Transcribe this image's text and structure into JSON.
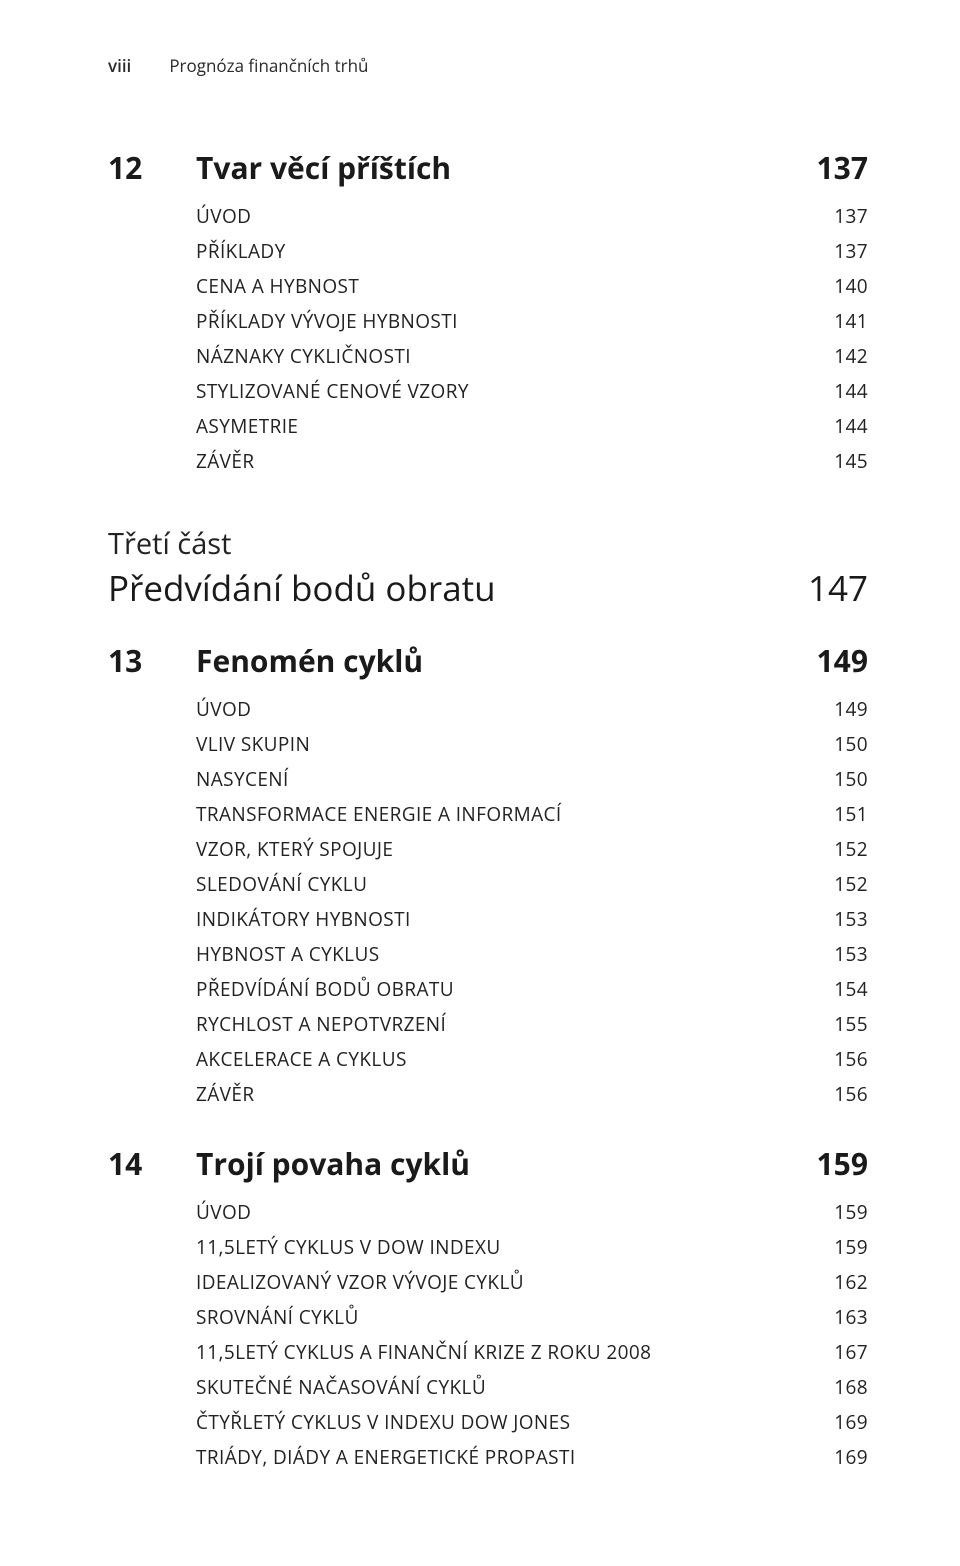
{
  "header": {
    "roman": "viii",
    "running_title": "Prognóza finančních trhů"
  },
  "chapter12": {
    "num": "12",
    "title": "Tvar věcí příštích",
    "page": "137",
    "entries": [
      {
        "label": "ÚVOD",
        "page": "137"
      },
      {
        "label": "PŘÍKLADY",
        "page": "137"
      },
      {
        "label": "CENA A HYBNOST",
        "page": "140"
      },
      {
        "label": "PŘÍKLADY VÝVOJE HYBNOSTI",
        "page": "141"
      },
      {
        "label": "NÁZNAKY CYKLIČNOSTI",
        "page": "142"
      },
      {
        "label": "STYLIZOVANÉ CENOVÉ VZORY",
        "page": "144"
      },
      {
        "label": "ASYMETRIE",
        "page": "144"
      },
      {
        "label": "ZÁVĚR",
        "page": "145"
      }
    ]
  },
  "part3": {
    "label": "Třetí část",
    "title": "Předvídání bodů obratu",
    "page": "147"
  },
  "chapter13": {
    "num": "13",
    "title": "Fenomén cyklů",
    "page": "149",
    "entries": [
      {
        "label": "ÚVOD",
        "page": "149"
      },
      {
        "label": "VLIV SKUPIN",
        "page": "150"
      },
      {
        "label": "NASYCENÍ",
        "page": "150"
      },
      {
        "label": "TRANSFORMACE ENERGIE A INFORMACÍ",
        "page": "151"
      },
      {
        "label": "VZOR, KTERÝ SPOJUJE",
        "page": "152"
      },
      {
        "label": "SLEDOVÁNÍ CYKLU",
        "page": "152"
      },
      {
        "label": "INDIKÁTORY HYBNOSTI",
        "page": "153"
      },
      {
        "label": "HYBNOST A CYKLUS",
        "page": "153"
      },
      {
        "label": "PŘEDVÍDÁNÍ BODŮ OBRATU",
        "page": "154"
      },
      {
        "label": "RYCHLOST A NEPOTVRZENÍ",
        "page": "155"
      },
      {
        "label": "AKCELERACE A CYKLUS",
        "page": "156"
      },
      {
        "label": "ZÁVĚR",
        "page": "156"
      }
    ]
  },
  "chapter14": {
    "num": "14",
    "title": "Trojí povaha cyklů",
    "page": "159",
    "entries": [
      {
        "label": "ÚVOD",
        "page": "159"
      },
      {
        "label": "11,5LETÝ CYKLUS V DOW INDEXU",
        "page": "159"
      },
      {
        "label": "IDEALIZOVANÝ VZOR VÝVOJE CYKLŮ",
        "page": "162"
      },
      {
        "label": "SROVNÁNÍ CYKLŮ",
        "page": "163"
      },
      {
        "label": "11,5LETÝ CYKLUS A FINANČNÍ KRIZE Z ROKU 2008",
        "page": "167"
      },
      {
        "label": "SKUTEČNÉ NAČASOVÁNÍ CYKLŮ",
        "page": "168"
      },
      {
        "label": "ČTYŘLETÝ CYKLUS V INDEXU DOW JONES",
        "page": "169"
      },
      {
        "label": "TRIÁDY, DIÁDY A ENERGETICKÉ PROPASTI",
        "page": "169"
      }
    ]
  }
}
